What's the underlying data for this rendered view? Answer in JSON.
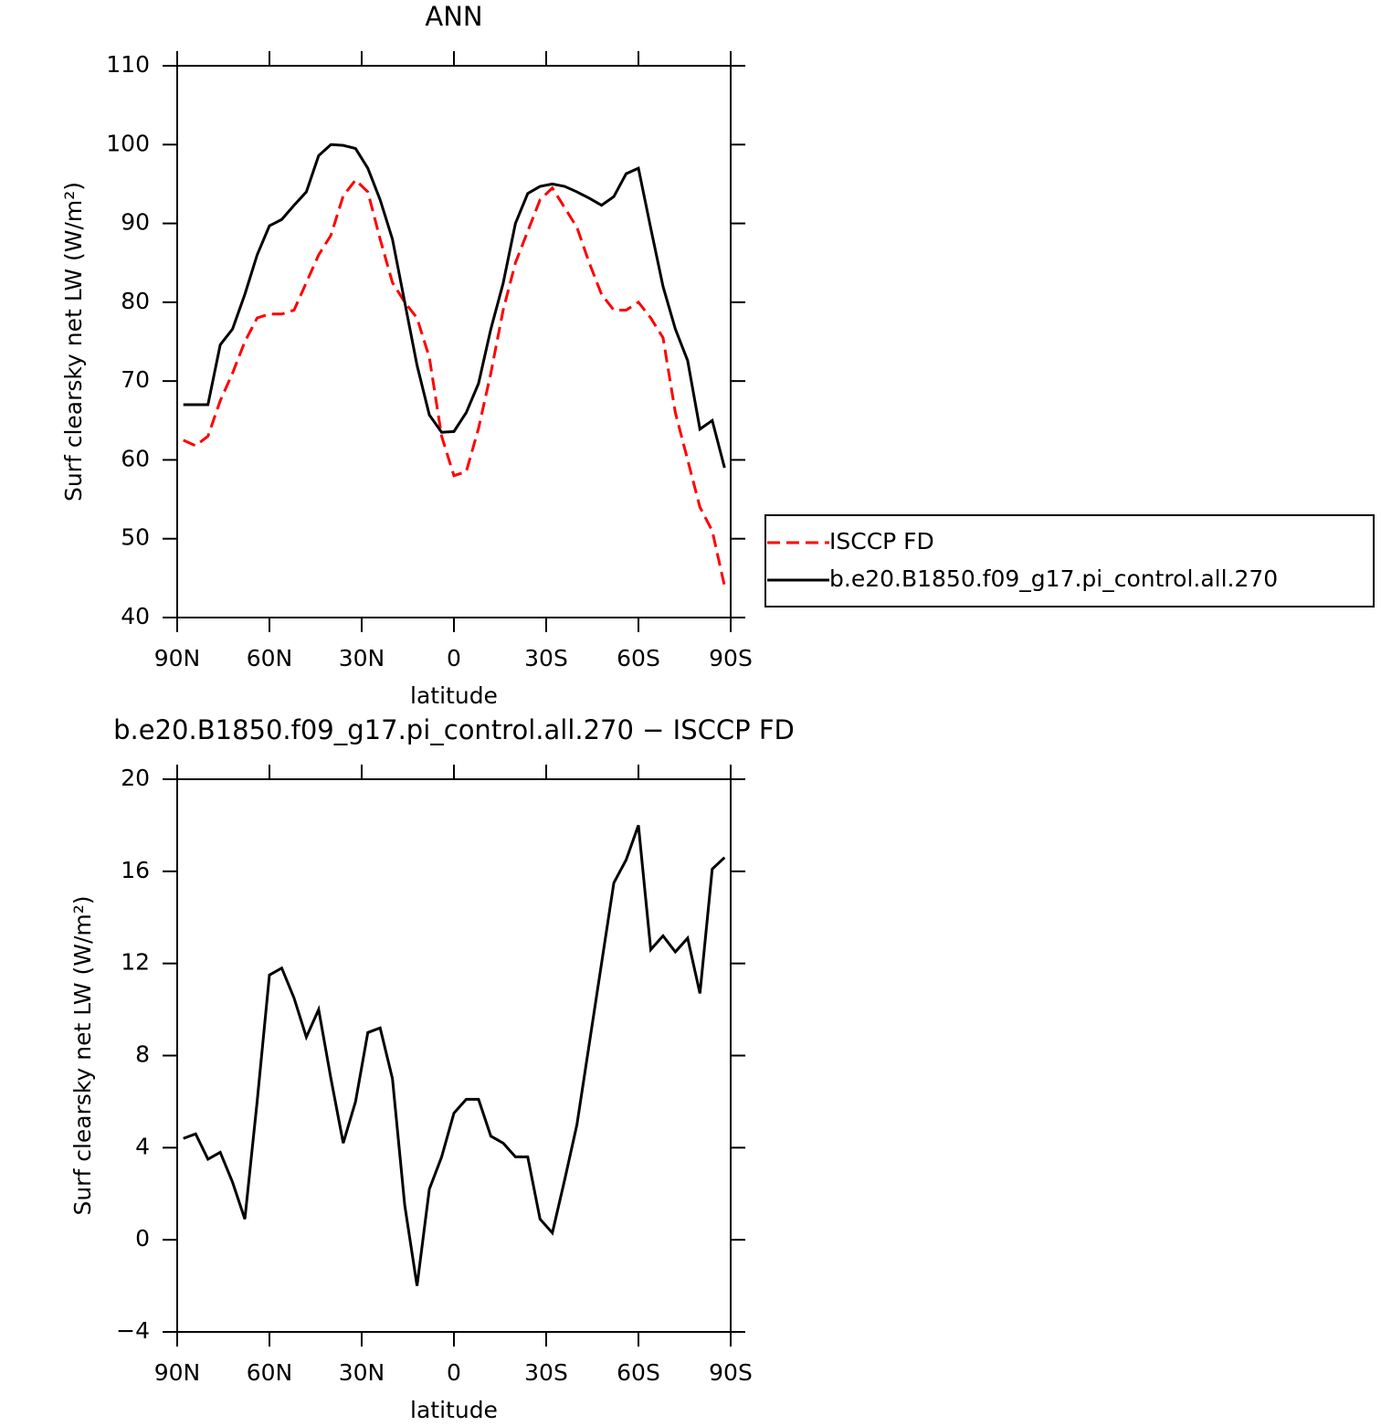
{
  "chart_data": [
    {
      "type": "line",
      "title": "ANN",
      "xlabel": "latitude",
      "ylabel": "Surf clearsky net LW (W/m²)",
      "x": [
        88,
        84,
        80,
        76,
        72,
        68,
        64,
        60,
        56,
        52,
        48,
        44,
        40,
        36,
        32,
        28,
        24,
        20,
        16,
        12,
        8,
        4,
        0,
        -4,
        -8,
        -12,
        -16,
        -20,
        -24,
        -28,
        -32,
        -36,
        -40,
        -44,
        -48,
        -52,
        -56,
        -60,
        -64,
        -68,
        -72,
        -76,
        -80,
        -84,
        -88
      ],
      "series": [
        {
          "name": "ISCCP FD",
          "color": "#ff0000",
          "linestyle": "dashed",
          "values": [
            62.5,
            61.8,
            63,
            67.5,
            71,
            75,
            78,
            78.5,
            78.5,
            79,
            82.5,
            86,
            88.5,
            93.5,
            95.5,
            94,
            88,
            82.5,
            80,
            78,
            73,
            63,
            58,
            58.5,
            64,
            71,
            79,
            85,
            89,
            93,
            94.5,
            92,
            89.5,
            85,
            81,
            79,
            79,
            80,
            78,
            75.5,
            66,
            60,
            54,
            51,
            44
          ]
        },
        {
          "name": "b.e20.B1850.f09_g17.pi_control.all.270",
          "color": "#000000",
          "linestyle": "solid",
          "values": [
            67,
            67,
            67,
            74.6,
            76.6,
            81,
            86,
            89.7,
            90.5,
            92.3,
            94,
            98.6,
            100,
            99.9,
            99.5,
            97,
            93,
            88,
            80,
            72,
            65.7,
            63.5,
            63.6,
            66,
            69.7,
            76.6,
            82.4,
            90,
            93.8,
            94.7,
            95,
            94.7,
            94,
            93.2,
            92.3,
            93.4,
            96.3,
            97,
            89.4,
            82,
            76.6,
            72.6,
            63.9,
            65,
            59
          ]
        }
      ],
      "xlim": [
        90,
        -90
      ],
      "xticks": [
        {
          "value": 90,
          "label": "90N"
        },
        {
          "value": 60,
          "label": "60N"
        },
        {
          "value": 30,
          "label": "30N"
        },
        0,
        {
          "value": -30,
          "label": "30S"
        },
        {
          "value": -60,
          "label": "60S"
        },
        {
          "value": -90,
          "label": "90S"
        }
      ],
      "ylim": [
        40,
        110
      ],
      "yticks": [
        40,
        50,
        60,
        70,
        80,
        90,
        100,
        110
      ],
      "legend": "right"
    },
    {
      "type": "line",
      "title": "b.e20.B1850.f09_g17.pi_control.all.270 − ISCCP FD",
      "xlabel": "latitude",
      "ylabel": "Surf clearsky net LW (W/m²)",
      "x": [
        88,
        84,
        80,
        76,
        72,
        68,
        64,
        60,
        56,
        52,
        48,
        44,
        40,
        36,
        32,
        28,
        24,
        20,
        16,
        12,
        8,
        4,
        0,
        -4,
        -8,
        -12,
        -16,
        -20,
        -24,
        -28,
        -32,
        -36,
        -40,
        -44,
        -48,
        -52,
        -56,
        -60,
        -64,
        -68,
        -72,
        -76,
        -80,
        -84,
        -88
      ],
      "series": [
        {
          "color": "#000000",
          "linestyle": "solid",
          "values": [
            4.4,
            4.6,
            3.5,
            3.8,
            2.5,
            0.9,
            6,
            11.5,
            11.8,
            10.5,
            8.8,
            10,
            7,
            4.2,
            6,
            9,
            9.2,
            7,
            1.5,
            -2,
            2.2,
            3.6,
            5.5,
            6.1,
            6.1,
            4.5,
            4.2,
            3.6,
            3.6,
            0.9,
            0.3,
            2.6,
            5,
            8.5,
            12,
            15.5,
            16.5,
            18,
            12.6,
            13.2,
            12.5,
            13.1,
            10.7,
            16.1,
            16.6
          ]
        }
      ],
      "xlim": [
        90,
        -90
      ],
      "xticks": [
        {
          "value": 90,
          "label": "90N"
        },
        {
          "value": 60,
          "label": "60N"
        },
        {
          "value": 30,
          "label": "30N"
        },
        0,
        {
          "value": -30,
          "label": "30S"
        },
        {
          "value": -60,
          "label": "60S"
        },
        {
          "value": -90,
          "label": "90S"
        }
      ],
      "ylim": [
        -4,
        20
      ],
      "yticks": [
        {
          "value": -4,
          "label": "−4"
        },
        0,
        4,
        8,
        12,
        16,
        20
      ]
    }
  ]
}
